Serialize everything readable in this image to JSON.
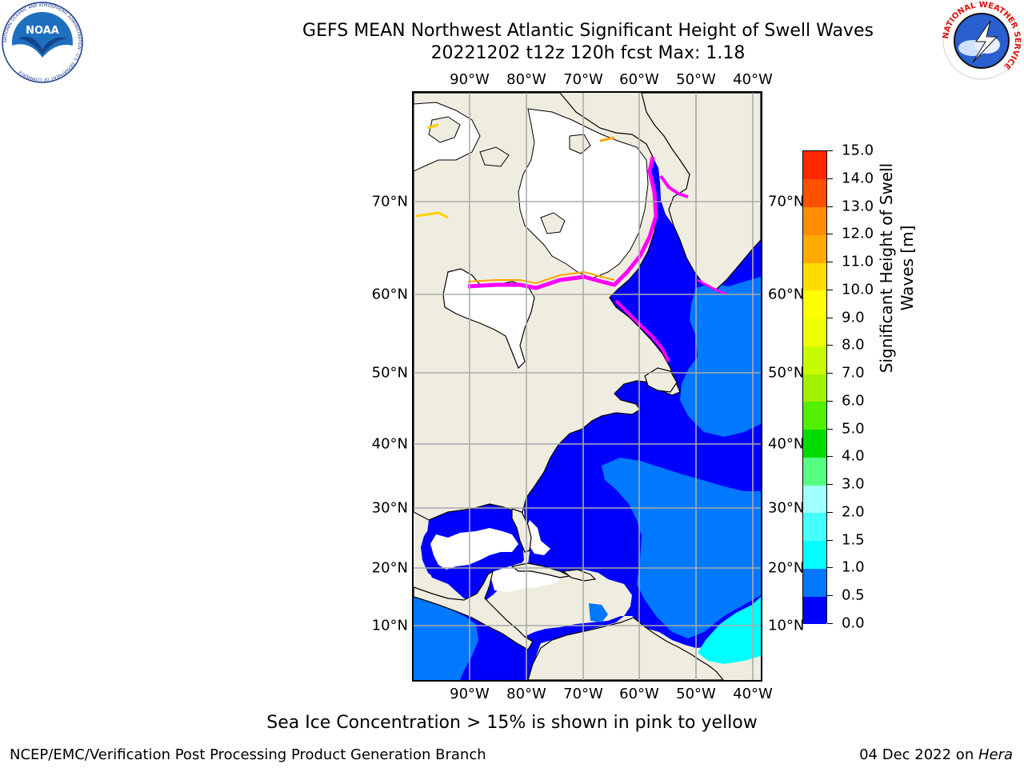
{
  "header": {
    "title_line1": "GEFS MEAN Northwest Atlantic Significant Height of Swell Waves",
    "title_line2": "20221202 t12z 120h fcst   Max: 1.18"
  },
  "logos": {
    "noaa_text": "NOAA",
    "noaa_ring_text": "NATIONAL OCEANIC AND ATMOSPHERIC ADMINISTRATION · U.S. DEPARTMENT OF COMMERCE",
    "nws_ring_text": "NATIONAL WEATHER SERVICE"
  },
  "map": {
    "lon_labels": [
      "90°W",
      "80°W",
      "70°W",
      "60°W",
      "50°W",
      "40°W"
    ],
    "lat_labels": [
      "70°N",
      "60°N",
      "50°N",
      "40°N",
      "30°N",
      "20°N",
      "10°N"
    ],
    "colors": {
      "land": "#efede0",
      "swell_low": "#0000ff",
      "swell_mid": "#0078ff",
      "swell_high": "#00ffff",
      "ice": "#ff00ff",
      "ice_edge": "#ffa500",
      "no_data": "#ffffff",
      "grid": "#aaaaaa"
    }
  },
  "colorbar": {
    "title": "Significant Height of Swell Waves [m]",
    "labels": [
      "0.0",
      "0.5",
      "1.0",
      "1.5",
      "2.0",
      "3.0",
      "4.0",
      "5.0",
      "6.0",
      "7.0",
      "8.0",
      "9.0",
      "10.0",
      "11.0",
      "12.0",
      "13.0",
      "14.0",
      "15.0"
    ],
    "colors": [
      "#0000ff",
      "#0078ff",
      "#00ffff",
      "#46ffff",
      "#a0ffff",
      "#55ff80",
      "#00dc00",
      "#50f000",
      "#a0f000",
      "#c8fa00",
      "#eeff00",
      "#ffff00",
      "#ffdc00",
      "#ffaa00",
      "#ff8c00",
      "#ff5000",
      "#ff2800"
    ]
  },
  "caption": "Sea Ice Concentration > 15% is shown in pink to yellow",
  "footer": {
    "left": "NCEP/EMC/Verification Post Processing Product Generation Branch",
    "right_date": "04 Dec 2022 on ",
    "right_host": "Hera"
  }
}
